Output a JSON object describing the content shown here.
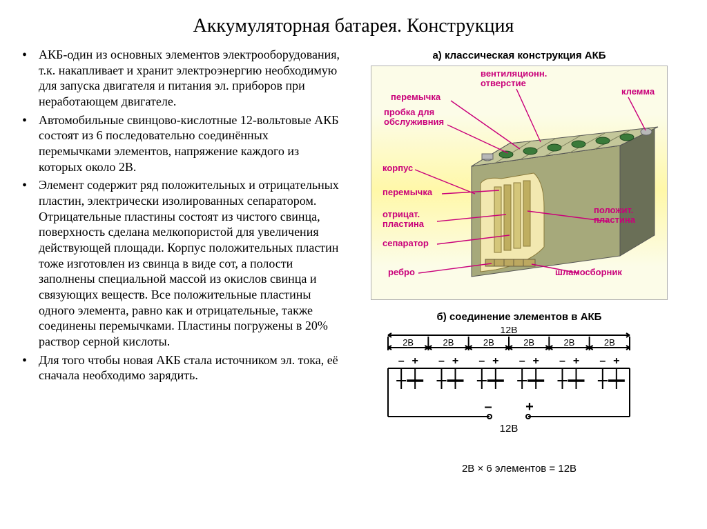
{
  "title": "Аккумуляторная батарея. Конструкция",
  "bullets": [
    "АКБ-один из основных элементов электрооборудования, т.к. накапливает и хранит электроэнергию необходимую для запуска двигателя и питания эл. приборов при неработающем двигателе.",
    "Автомобильные свинцово-кислотные 12-вольтовые АКБ состоят из 6 последовательно соединённых перемычками элементов, напряжение каждого из которых около 2В.",
    "Элемент содержит ряд положительных и отрицательных пластин, электрически изолированных сепаратором. Отрицательные пластины состоят из чистого свинца, поверхность сделана мелкопористой для увеличения действующей площади. Корпус положительных пластин тоже изготовлен из свинца в виде сот, а полости заполнены специальной массой из окислов свинца и связующих веществ. Все положительные пластины одного элемента, равно как и отрицательные, также соединены перемычками. Пластины погружены в 20% раствор серной кислоты.",
    "Для того чтобы новая АКБ стала источником эл. тока, её сначала необходимо зарядить."
  ],
  "figA": {
    "caption": "а) классическая конструкция АКБ",
    "labels": {
      "vent": "вентиляционн.\nотверстие",
      "jumper_top": "перемычка",
      "cap": "пробка для\nобслуживния",
      "terminal": "клемма",
      "case": "корпус",
      "jumper_side": "перемычка",
      "neg_plate": "отрицат.\nпластина",
      "pos_plate": "положит.\nпластина",
      "separator": "сепаратор",
      "rib": "ребро",
      "sludge": "шламосборник"
    },
    "colors": {
      "bg": "#fcfce8",
      "bg2": "#fff8a8",
      "label": "#c9007a",
      "line": "#c9007a",
      "caseDark": "#6a6f57",
      "caseLight": "#a6a97b",
      "caseTop": "#c4c79a",
      "capGreen": "#3a7a3a",
      "terminal": "#b8b8b8",
      "innerPlate": "#d4c67a",
      "innerCut": "#f2e8b0",
      "border": "#888"
    }
  },
  "figB": {
    "caption": "б) соединение элементов в АКБ",
    "totalV": "12В",
    "cellV": "2В",
    "cells": 6,
    "equation": "2В × 6 элементов = 12В",
    "minus": "–",
    "plus": "+",
    "circle_r": 3,
    "colors": {
      "line": "#000000"
    }
  }
}
